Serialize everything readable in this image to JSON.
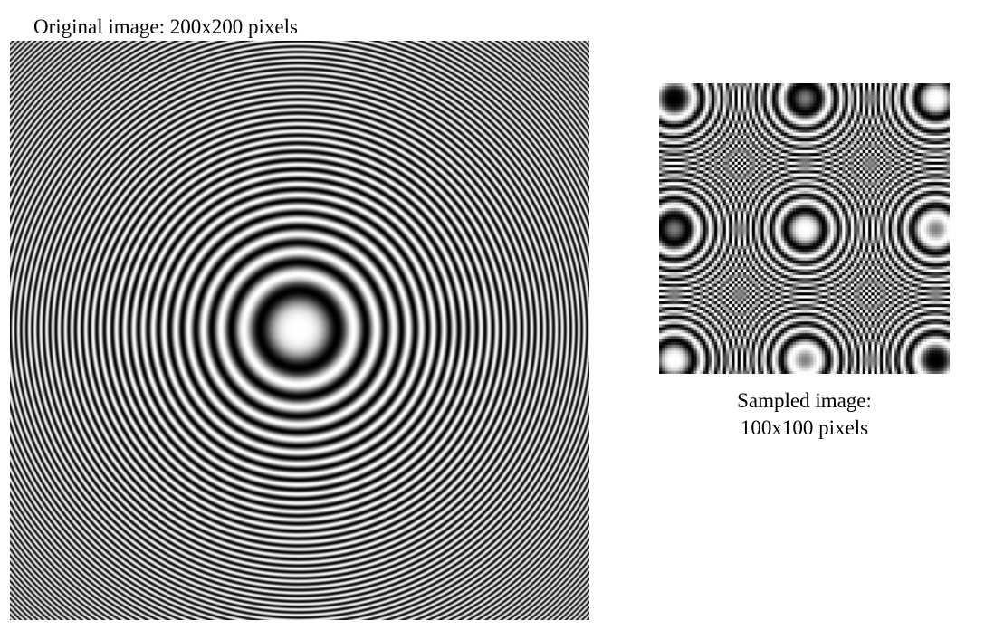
{
  "original": {
    "caption": "Original image: 200x200 pixels"
  },
  "sampled": {
    "caption_line1": "Sampled image:",
    "caption_line2": "100x100 pixels"
  }
}
